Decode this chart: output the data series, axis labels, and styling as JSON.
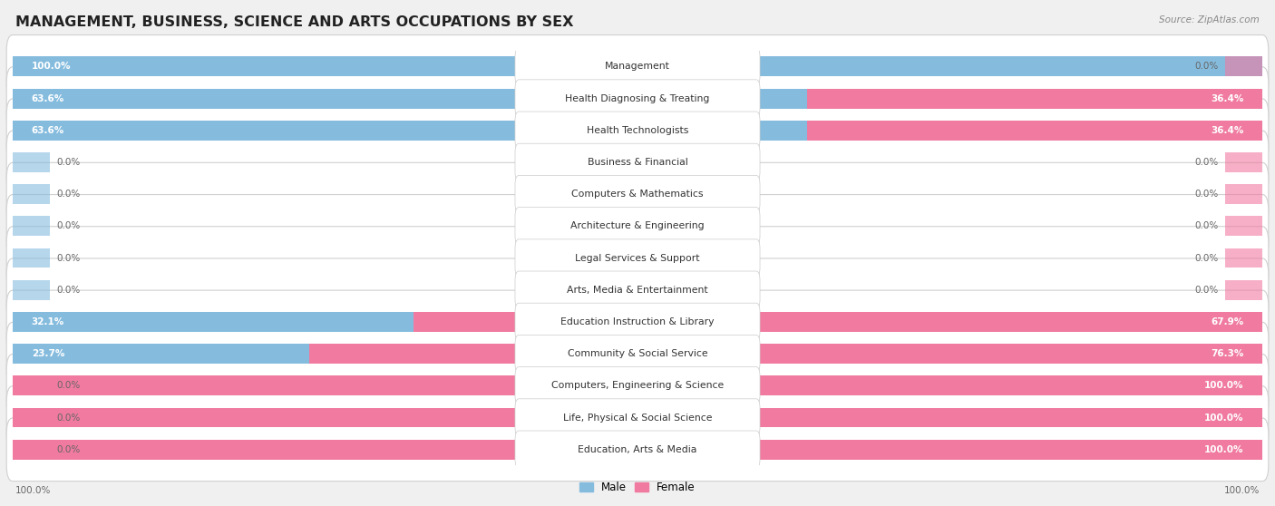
{
  "title": "MANAGEMENT, BUSINESS, SCIENCE AND ARTS OCCUPATIONS BY SEX",
  "source": "Source: ZipAtlas.com",
  "categories": [
    "Management",
    "Health Diagnosing & Treating",
    "Health Technologists",
    "Business & Financial",
    "Computers & Mathematics",
    "Architecture & Engineering",
    "Legal Services & Support",
    "Arts, Media & Entertainment",
    "Education Instruction & Library",
    "Community & Social Service",
    "Computers, Engineering & Science",
    "Life, Physical & Social Science",
    "Education, Arts & Media"
  ],
  "male": [
    100.0,
    63.6,
    63.6,
    0.0,
    0.0,
    0.0,
    0.0,
    0.0,
    32.1,
    23.7,
    0.0,
    0.0,
    0.0
  ],
  "female": [
    0.0,
    36.4,
    36.4,
    0.0,
    0.0,
    0.0,
    0.0,
    0.0,
    67.9,
    76.3,
    100.0,
    100.0,
    100.0
  ],
  "male_color": "#85bcde",
  "female_color": "#f07aa0",
  "male_label": "Male",
  "female_label": "Female",
  "background_color": "#f0f0f0",
  "row_bg_color": "#ffffff",
  "row_border_color": "#d0d0d0",
  "title_fontsize": 11.5,
  "label_fontsize": 7.8,
  "value_fontsize": 7.5,
  "legend_fontsize": 8.5,
  "source_fontsize": 7.5
}
